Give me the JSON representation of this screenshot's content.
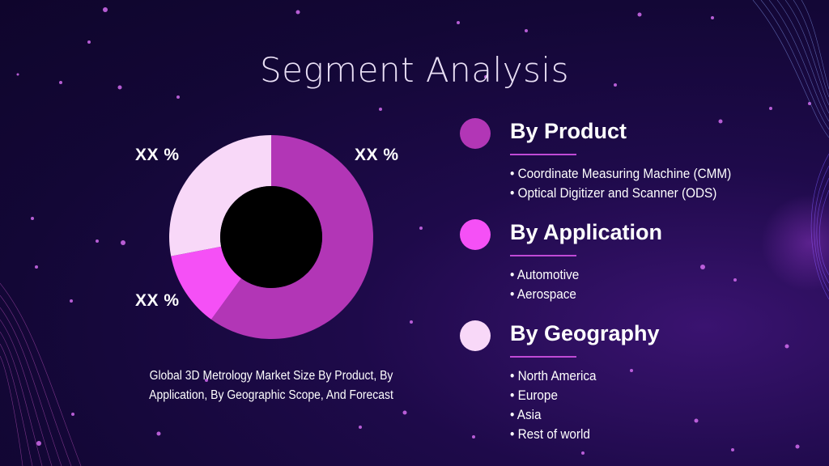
{
  "title": "Segment Analysis",
  "chart_data": {
    "type": "pie",
    "donut": true,
    "title": "",
    "categories": [
      "By Product",
      "By Application",
      "By Geography"
    ],
    "values": [
      60,
      12,
      28
    ],
    "colors": [
      "#b236b6",
      "#f550f6",
      "#f8d8f8"
    ],
    "data_labels": [
      "XX %",
      "XX %",
      "XX %"
    ]
  },
  "caption": {
    "line1": "Global 3D Metrology Market Size By Product, By",
    "line2": "Application, By Geographic Scope, And Forecast"
  },
  "legend": [
    {
      "heading": "By Product",
      "color": "#b236b6",
      "items": [
        "Coordinate Measuring Machine (CMM)",
        "Optical Digitizer and Scanner (ODS)"
      ]
    },
    {
      "heading": "By Application",
      "color": "#f550f6",
      "items": [
        "Automotive",
        "Aerospace"
      ]
    },
    {
      "heading": "By Geography",
      "color": "#f8d8f8",
      "items": [
        "North America",
        "Europe",
        "Asia",
        "Rest of world"
      ]
    }
  ]
}
